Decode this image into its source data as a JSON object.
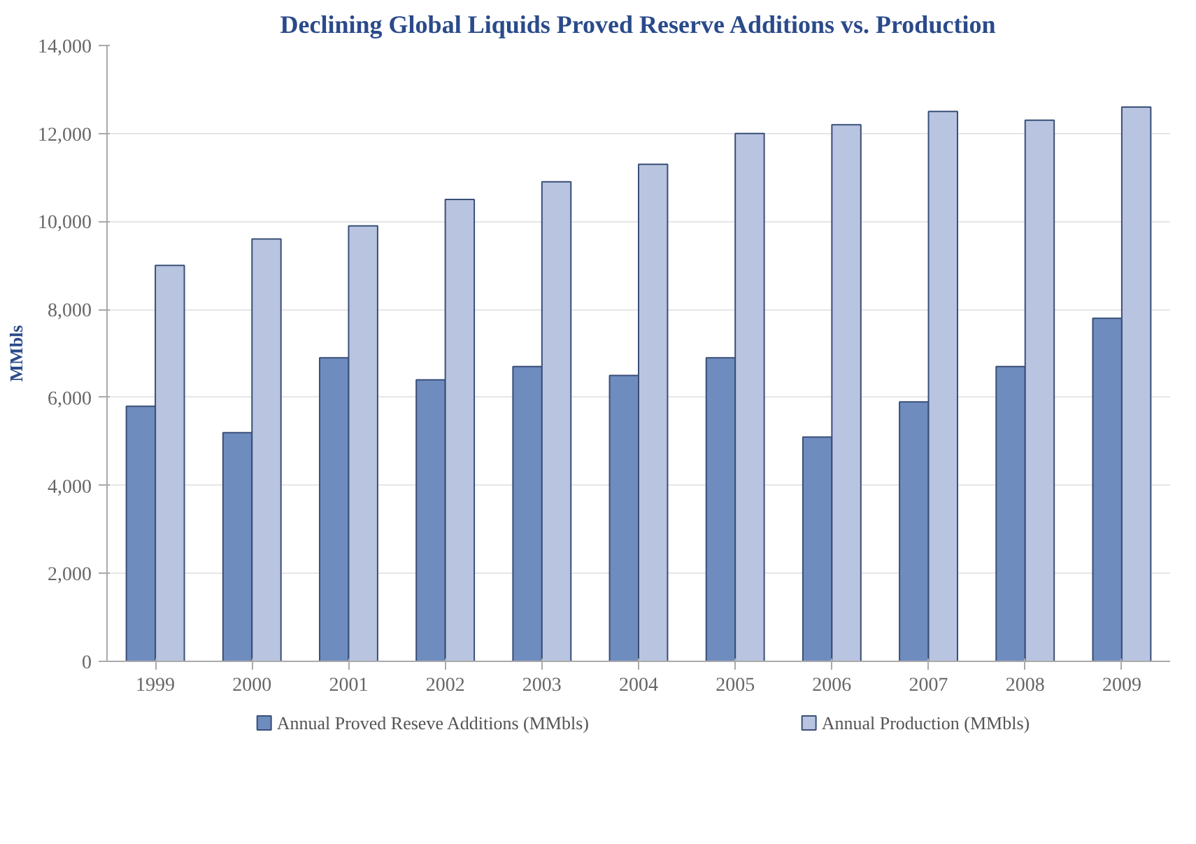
{
  "chart_data": {
    "type": "bar",
    "title": "Declining Global Liquids Proved Reserve Additions vs. Production",
    "ylabel": "MMbls",
    "categories": [
      "1999",
      "2000",
      "2001",
      "2002",
      "2003",
      "2004",
      "2005",
      "2006",
      "2007",
      "2008",
      "2009"
    ],
    "series": [
      {
        "name": "Annual Proved Reseve Additions (MMbls)",
        "color": "#6f8cbf",
        "values": [
          5800,
          5200,
          6900,
          6400,
          6700,
          6500,
          6900,
          5100,
          5900,
          6700,
          7800
        ]
      },
      {
        "name": "Annual Production (MMbls)",
        "color": "#b8c4e0",
        "values": [
          9000,
          9600,
          9900,
          10500,
          10900,
          11300,
          12000,
          12200,
          12500,
          12300,
          12600
        ]
      }
    ],
    "ylim": [
      0,
      14000
    ],
    "yticks": [
      {
        "value": 0,
        "label": "0"
      },
      {
        "value": 2000,
        "label": "2,000"
      },
      {
        "value": 4000,
        "label": "4,000"
      },
      {
        "value": 6000,
        "label": "6,000"
      },
      {
        "value": 8000,
        "label": "8,000"
      },
      {
        "value": 10000,
        "label": "10,000"
      },
      {
        "value": 12000,
        "label": "12,000"
      },
      {
        "value": 14000,
        "label": "14,000"
      }
    ],
    "grid": "y",
    "legend": "bottom"
  }
}
